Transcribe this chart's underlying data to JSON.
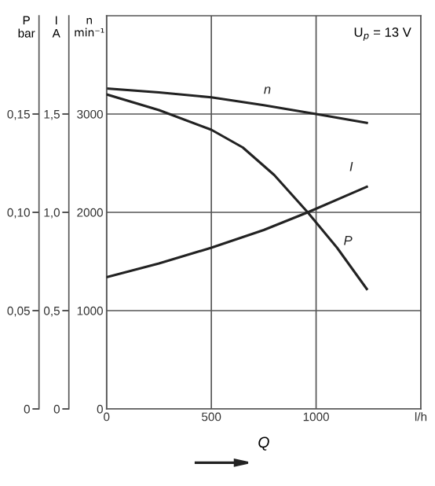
{
  "chart_data": {
    "type": "line",
    "xlabel": "Q",
    "ylabel": "n\nmin⁻¹",
    "y2label": "I\nA",
    "y3label": "P\nbar",
    "xlim": [
      0,
      1500
    ],
    "xticks": [
      0,
      500,
      1000,
      {
        "value": 1500,
        "label": "l/h"
      }
    ],
    "ylim": [
      0,
      4000
    ],
    "yticks": [
      0,
      1000,
      2000,
      3000
    ],
    "y2lim": [
      0,
      2
    ],
    "y2ticks": [
      0,
      {
        "value": 0.5,
        "label": "0,5"
      },
      {
        "value": 1.0,
        "label": "1,0"
      },
      {
        "value": 1.5,
        "label": "1,5"
      }
    ],
    "y3lim": [
      0,
      0.2
    ],
    "y3ticks": [
      0,
      {
        "value": 0.05,
        "label": "0,05"
      },
      {
        "value": 0.1,
        "label": "0,10"
      },
      {
        "value": 0.15,
        "label": "0,15"
      }
    ],
    "grid": true,
    "legend": false,
    "marker": "none",
    "line_style": "solid",
    "annotations": [
      "U$_{p}$ = 13 V"
    ],
    "series": [
      {
        "name": "n",
        "color": "#222222",
        "x": [
          0,
          250,
          500,
          750,
          1000,
          1242
        ],
        "values": [
          3260,
          3220,
          3170,
          3090,
          3000,
          2910
        ]
      },
      {
        "name": "I",
        "color": "#222222",
        "axis": "y2",
        "x": [
          0,
          250,
          500,
          750,
          960,
          1242
        ],
        "values": [
          0.67,
          0.74,
          0.82,
          0.91,
          1.0,
          1.13
        ]
      },
      {
        "name": "P",
        "color": "#222222",
        "axis": "y3",
        "x": [
          0,
          250,
          500,
          650,
          800,
          960,
          1100,
          1242
        ],
        "values": [
          0.16,
          0.152,
          0.142,
          0.133,
          0.119,
          0.1,
          0.082,
          0.061
        ]
      }
    ]
  }
}
